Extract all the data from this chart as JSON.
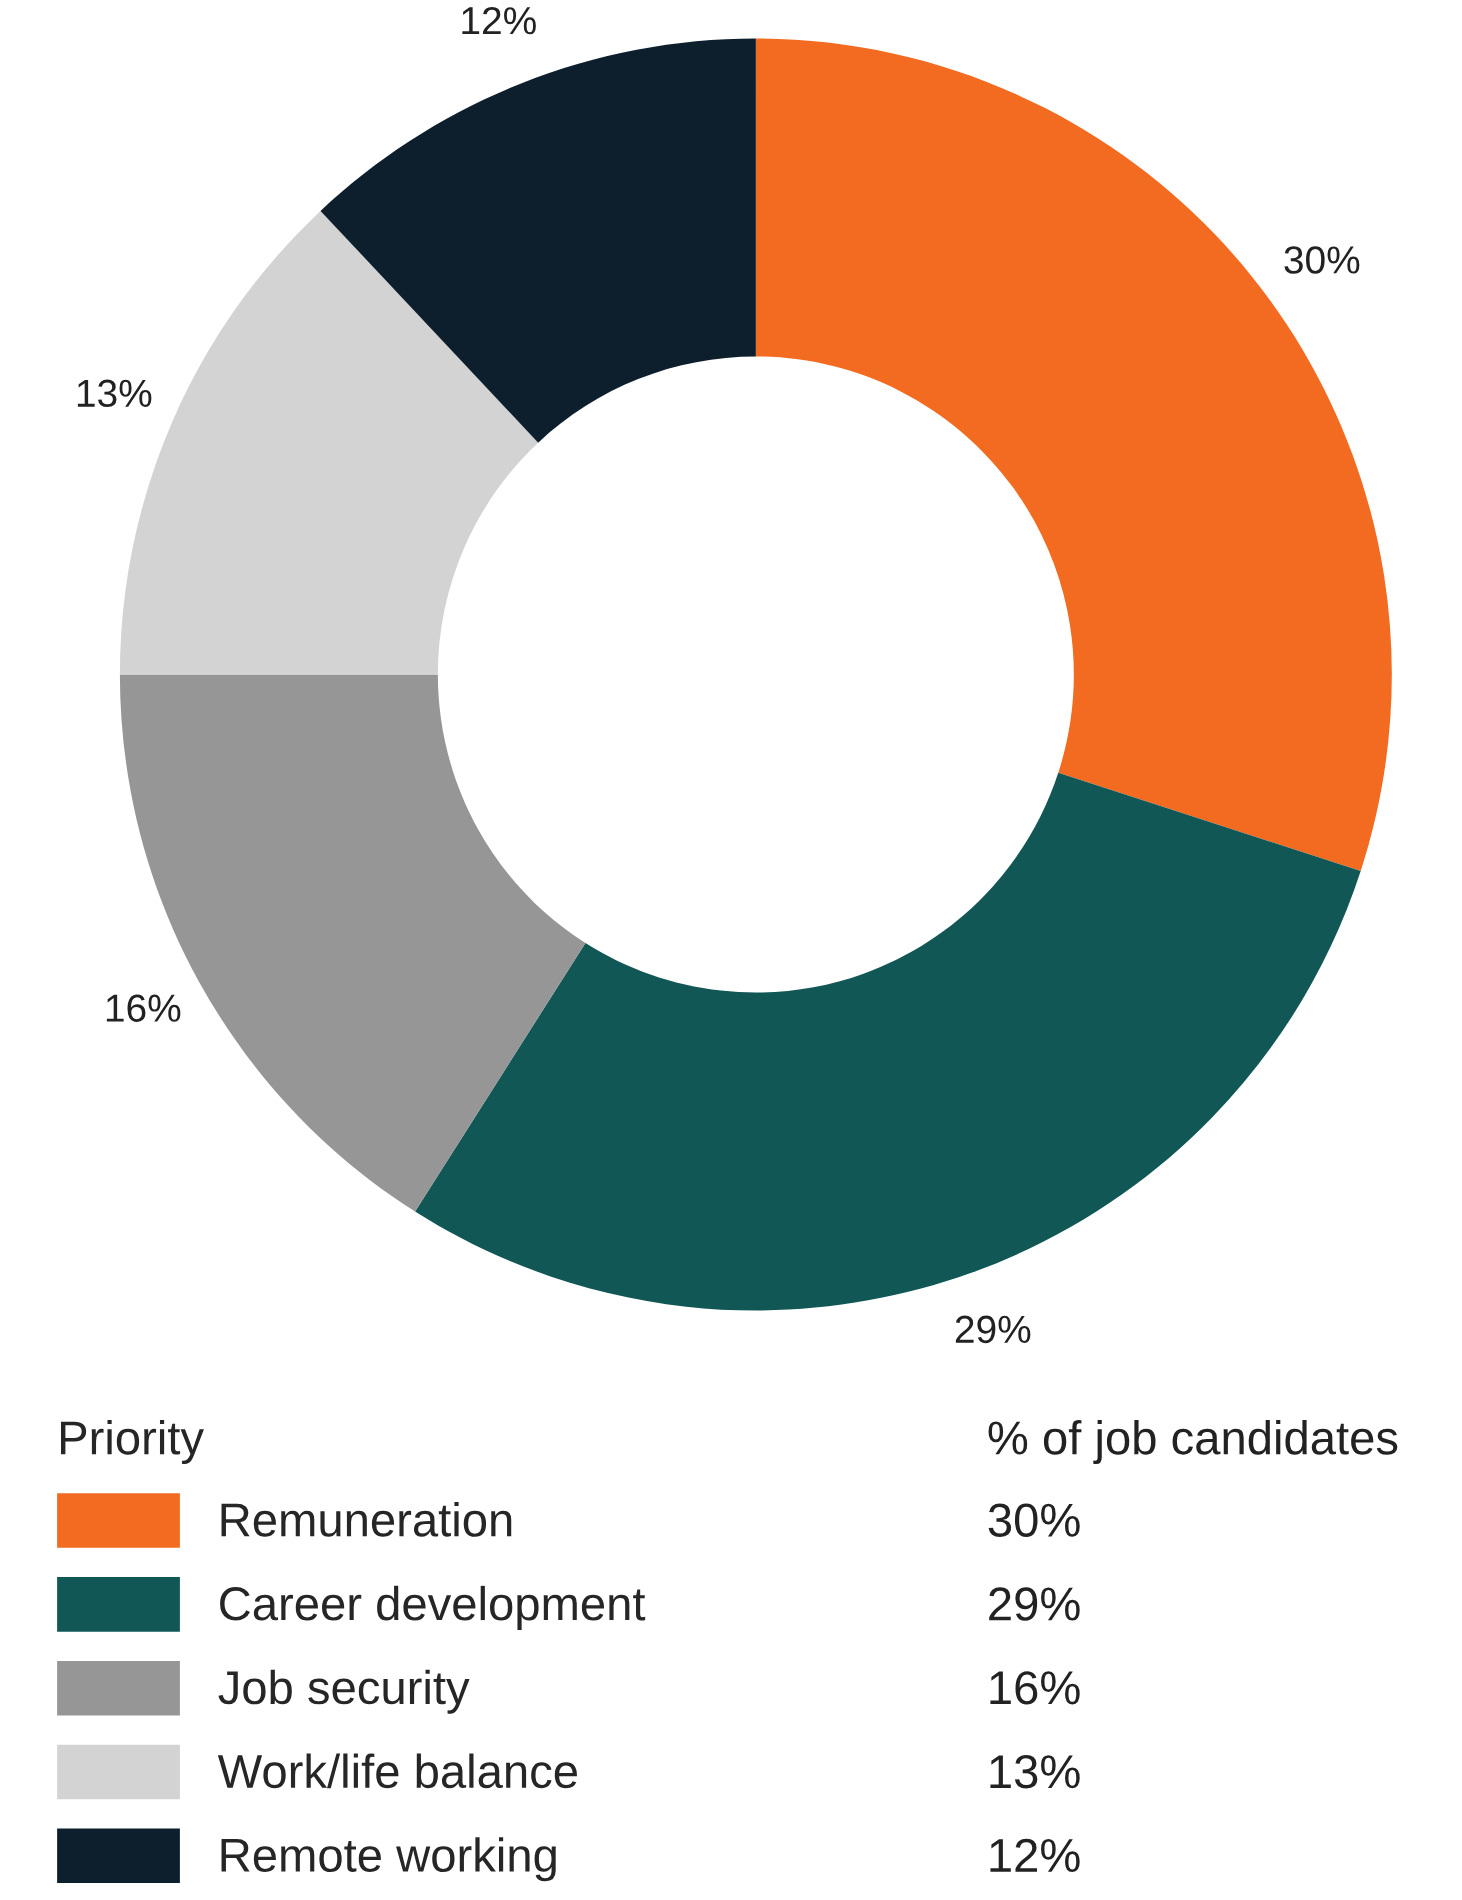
{
  "chart_data": {
    "type": "donut",
    "categories": [
      "Remuneration",
      "Career development",
      "Job security",
      "Work/life balance",
      "Remote working"
    ],
    "values": [
      30,
      29,
      16,
      13,
      12
    ],
    "colors": [
      "#f26b21",
      "#115755",
      "#969696",
      "#d3d3d3",
      "#0d1f2d"
    ],
    "legend_title": "Priority",
    "legend": "bottom",
    "value_labels": [
      "30%",
      "29%",
      "16%",
      "13%",
      "12%"
    ],
    "annotations": [
      "% of job candidates"
    ]
  }
}
